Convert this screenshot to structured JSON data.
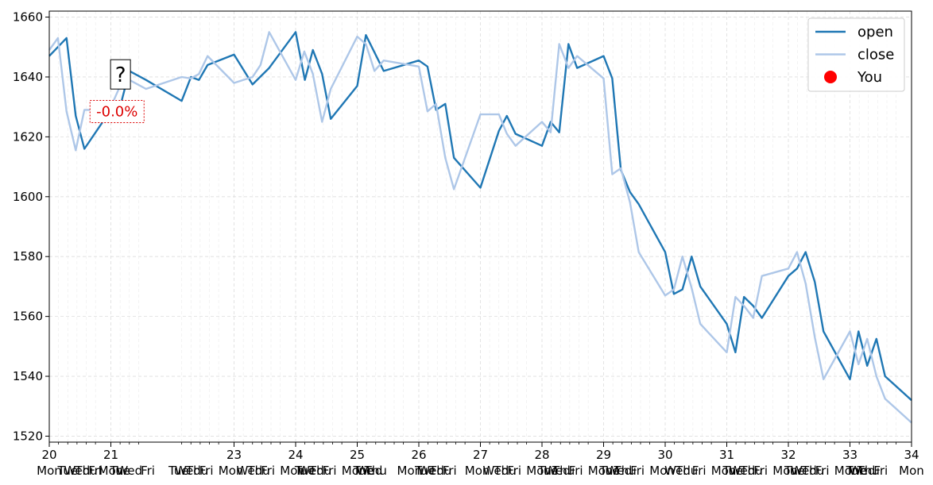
{
  "chart_data": {
    "type": "line",
    "title": "",
    "xlabel": "",
    "ylabel": "",
    "xlim": [
      20,
      34
    ],
    "ylim": [
      1518,
      1662
    ],
    "grid": true,
    "legend_position": "top-right",
    "yticks": [
      1520,
      1540,
      1560,
      1580,
      1600,
      1620,
      1640,
      1660
    ],
    "xticks_major": [
      {
        "x": 20,
        "label": "20"
      },
      {
        "x": 21,
        "label": "21"
      },
      {
        "x": 23,
        "label": "23"
      },
      {
        "x": 24,
        "label": "24"
      },
      {
        "x": 25,
        "label": "25"
      },
      {
        "x": 26,
        "label": "26"
      },
      {
        "x": 27,
        "label": "27"
      },
      {
        "x": 28,
        "label": "28"
      },
      {
        "x": 29,
        "label": "29"
      },
      {
        "x": 30,
        "label": "30"
      },
      {
        "x": 31,
        "label": "31"
      },
      {
        "x": 32,
        "label": "32"
      },
      {
        "x": 33,
        "label": "33"
      },
      {
        "x": 34,
        "label": "34"
      }
    ],
    "xticks_minor": [
      20.15,
      20.3,
      20.45,
      20.6,
      20.75,
      21.15,
      21.3,
      21.45,
      22.15,
      22.3,
      22.45,
      22.6,
      22.75,
      23.15,
      23.3,
      23.45,
      23.6,
      23.75,
      24.15,
      24.3,
      24.45,
      24.6,
      24.75,
      25.15,
      25.3,
      25.45,
      25.6,
      25.75,
      26.15,
      26.3,
      26.45,
      26.6,
      26.75,
      27.15,
      27.3,
      27.45,
      27.6,
      27.75,
      28.15,
      28.3,
      28.45,
      28.6,
      28.75,
      29.15,
      29.3,
      29.45,
      29.6,
      29.75,
      30.15,
      30.3,
      30.45,
      30.6,
      30.75,
      31.15,
      31.3,
      31.45,
      31.6,
      31.75,
      32.15,
      32.3,
      32.45,
      32.6,
      32.75,
      33.15,
      33.3,
      33.45,
      33.6,
      33.75
    ],
    "xticks_minor_labels": [
      {
        "x": 20.0,
        "label": "Mon"
      },
      {
        "x": 20.3,
        "label": "Tue"
      },
      {
        "x": 20.45,
        "label": "Wed"
      },
      {
        "x": 20.6,
        "label": "Thu"
      },
      {
        "x": 20.75,
        "label": "Fri"
      },
      {
        "x": 21.0,
        "label": "Mon"
      },
      {
        "x": 21.15,
        "label": "Tue"
      },
      {
        "x": 21.3,
        "label": "Wed"
      },
      {
        "x": 21.6,
        "label": "Fri"
      },
      {
        "x": 22.1,
        "label": "Tue"
      },
      {
        "x": 22.25,
        "label": "Wed"
      },
      {
        "x": 22.4,
        "label": "Thu"
      },
      {
        "x": 22.55,
        "label": "Fri"
      },
      {
        "x": 22.95,
        "label": "Mon"
      },
      {
        "x": 23.25,
        "label": "Wed"
      },
      {
        "x": 23.4,
        "label": "Thu"
      },
      {
        "x": 23.55,
        "label": "Fri"
      },
      {
        "x": 23.95,
        "label": "Mon"
      },
      {
        "x": 24.15,
        "label": "Tue"
      },
      {
        "x": 24.25,
        "label": "Wed"
      },
      {
        "x": 24.4,
        "label": "Thu"
      },
      {
        "x": 24.55,
        "label": "Fri"
      },
      {
        "x": 24.95,
        "label": "Mon"
      },
      {
        "x": 25.1,
        "label": "Tue"
      },
      {
        "x": 25.2,
        "label": "Wed"
      },
      {
        "x": 25.3,
        "label": "Thu"
      },
      {
        "x": 25.85,
        "label": "Mon"
      },
      {
        "x": 26.1,
        "label": "Tue"
      },
      {
        "x": 26.2,
        "label": "Wed"
      },
      {
        "x": 26.35,
        "label": "Thu"
      },
      {
        "x": 26.5,
        "label": "Fri"
      },
      {
        "x": 26.95,
        "label": "Mon"
      },
      {
        "x": 27.25,
        "label": "Wed"
      },
      {
        "x": 27.4,
        "label": "Thu"
      },
      {
        "x": 27.55,
        "label": "Fri"
      },
      {
        "x": 27.95,
        "label": "Mon"
      },
      {
        "x": 28.1,
        "label": "Tue"
      },
      {
        "x": 28.25,
        "label": "Wed"
      },
      {
        "x": 28.35,
        "label": "Thu"
      },
      {
        "x": 28.55,
        "label": "Fri"
      },
      {
        "x": 28.95,
        "label": "Mon"
      },
      {
        "x": 29.1,
        "label": "Tue"
      },
      {
        "x": 29.25,
        "label": "Wed"
      },
      {
        "x": 29.35,
        "label": "Thu"
      },
      {
        "x": 29.55,
        "label": "Fri"
      },
      {
        "x": 29.95,
        "label": "Mon"
      },
      {
        "x": 30.2,
        "label": "Wed"
      },
      {
        "x": 30.35,
        "label": "Thu"
      },
      {
        "x": 30.55,
        "label": "Fri"
      },
      {
        "x": 30.95,
        "label": "Mon"
      },
      {
        "x": 31.1,
        "label": "Tue"
      },
      {
        "x": 31.25,
        "label": "Wed"
      },
      {
        "x": 31.4,
        "label": "Thu"
      },
      {
        "x": 31.55,
        "label": "Fri"
      },
      {
        "x": 31.95,
        "label": "Mon"
      },
      {
        "x": 32.1,
        "label": "Tue"
      },
      {
        "x": 32.25,
        "label": "Wed"
      },
      {
        "x": 32.4,
        "label": "Thu"
      },
      {
        "x": 32.55,
        "label": "Fri"
      },
      {
        "x": 32.95,
        "label": "Mon"
      },
      {
        "x": 33.1,
        "label": "Tue"
      },
      {
        "x": 33.2,
        "label": "Wed"
      },
      {
        "x": 33.3,
        "label": "Thu"
      },
      {
        "x": 33.5,
        "label": "Fri"
      },
      {
        "x": 34.0,
        "label": "Mon"
      }
    ],
    "series": [
      {
        "name": "open",
        "color": "#1f77b4",
        "points": [
          [
            20.0,
            1647
          ],
          [
            20.28,
            1653
          ],
          [
            20.43,
            1627
          ],
          [
            20.57,
            1616
          ],
          [
            21.0,
            1629
          ],
          [
            21.15,
            1630
          ],
          [
            21.3,
            1642
          ],
          [
            21.57,
            1639
          ],
          [
            22.15,
            1632
          ],
          [
            22.3,
            1640
          ],
          [
            22.43,
            1639
          ],
          [
            22.57,
            1644
          ],
          [
            23.0,
            1647.5
          ],
          [
            23.3,
            1637.5
          ],
          [
            23.57,
            1643
          ],
          [
            24.0,
            1655
          ],
          [
            24.15,
            1639
          ],
          [
            24.28,
            1649
          ],
          [
            24.43,
            1641
          ],
          [
            24.57,
            1626
          ],
          [
            25.0,
            1637
          ],
          [
            25.14,
            1654
          ],
          [
            25.43,
            1642
          ],
          [
            26.0,
            1645.5
          ],
          [
            26.14,
            1643.5
          ],
          [
            26.28,
            1629
          ],
          [
            26.43,
            1631
          ],
          [
            26.57,
            1613
          ],
          [
            27.0,
            1603
          ],
          [
            27.3,
            1622
          ],
          [
            27.43,
            1627
          ],
          [
            27.57,
            1621
          ],
          [
            28.0,
            1617
          ],
          [
            28.14,
            1625
          ],
          [
            28.28,
            1621.5
          ],
          [
            28.43,
            1651
          ],
          [
            28.57,
            1643
          ],
          [
            29.0,
            1647
          ],
          [
            29.14,
            1639.5
          ],
          [
            29.28,
            1609
          ],
          [
            29.43,
            1601.5
          ],
          [
            29.57,
            1597.5
          ],
          [
            30.0,
            1581.5
          ],
          [
            30.14,
            1567.5
          ],
          [
            30.28,
            1569
          ],
          [
            30.43,
            1580
          ],
          [
            30.57,
            1570
          ],
          [
            31.0,
            1557.5
          ],
          [
            31.14,
            1548
          ],
          [
            31.28,
            1566.5
          ],
          [
            31.43,
            1563.5
          ],
          [
            31.57,
            1559.5
          ],
          [
            32.0,
            1573.5
          ],
          [
            32.14,
            1576
          ],
          [
            32.28,
            1581.5
          ],
          [
            32.43,
            1571.5
          ],
          [
            32.57,
            1555
          ],
          [
            33.0,
            1539
          ],
          [
            33.14,
            1555
          ],
          [
            33.28,
            1543.5
          ],
          [
            33.43,
            1552.5
          ],
          [
            33.57,
            1540
          ],
          [
            34.0,
            1532
          ]
        ]
      },
      {
        "name": "close",
        "color": "#aec7e8",
        "points": [
          [
            20.0,
            1649
          ],
          [
            20.14,
            1653
          ],
          [
            20.28,
            1628.5
          ],
          [
            20.43,
            1615.5
          ],
          [
            20.57,
            1629
          ],
          [
            20.72,
            1629
          ],
          [
            21.0,
            1630
          ],
          [
            21.15,
            1637
          ],
          [
            21.3,
            1639
          ],
          [
            21.57,
            1636
          ],
          [
            22.15,
            1640
          ],
          [
            22.3,
            1639.5
          ],
          [
            22.43,
            1641
          ],
          [
            22.57,
            1647
          ],
          [
            23.0,
            1638
          ],
          [
            23.3,
            1640
          ],
          [
            23.43,
            1644
          ],
          [
            23.57,
            1655
          ],
          [
            24.0,
            1639
          ],
          [
            24.14,
            1648.5
          ],
          [
            24.28,
            1641
          ],
          [
            24.43,
            1625
          ],
          [
            24.57,
            1636
          ],
          [
            25.0,
            1653.5
          ],
          [
            25.14,
            1651
          ],
          [
            25.28,
            1642
          ],
          [
            25.43,
            1645.5
          ],
          [
            26.0,
            1643.5
          ],
          [
            26.14,
            1628.5
          ],
          [
            26.28,
            1631
          ],
          [
            26.43,
            1613
          ],
          [
            26.57,
            1602.5
          ],
          [
            27.0,
            1627.5
          ],
          [
            27.3,
            1627.5
          ],
          [
            27.43,
            1621
          ],
          [
            27.57,
            1617
          ],
          [
            28.0,
            1625
          ],
          [
            28.14,
            1621.5
          ],
          [
            28.28,
            1651
          ],
          [
            28.43,
            1643
          ],
          [
            28.57,
            1647
          ],
          [
            29.0,
            1639.5
          ],
          [
            29.14,
            1607.5
          ],
          [
            29.28,
            1609.5
          ],
          [
            29.43,
            1598
          ],
          [
            29.57,
            1581.5
          ],
          [
            30.0,
            1567
          ],
          [
            30.14,
            1569
          ],
          [
            30.28,
            1580
          ],
          [
            30.43,
            1569.5
          ],
          [
            30.57,
            1557.5
          ],
          [
            31.0,
            1548
          ],
          [
            31.14,
            1566.5
          ],
          [
            31.28,
            1563.5
          ],
          [
            31.43,
            1559.5
          ],
          [
            31.57,
            1573.5
          ],
          [
            32.0,
            1576
          ],
          [
            32.14,
            1581.5
          ],
          [
            32.28,
            1571
          ],
          [
            32.43,
            1553
          ],
          [
            32.57,
            1539
          ],
          [
            33.0,
            1555
          ],
          [
            33.14,
            1544
          ],
          [
            33.28,
            1552.5
          ],
          [
            33.43,
            1540
          ],
          [
            33.57,
            1532.5
          ],
          [
            34.0,
            1524.5
          ]
        ]
      }
    ],
    "marker": {
      "name": "You",
      "color": "#ff0000",
      "x": 21.15,
      "y": 1630
    },
    "annotations": {
      "question": {
        "text": "?",
        "x": 21.15,
        "y": 1641
      },
      "change": {
        "text": "-0.0%",
        "color": "#dd0000",
        "x": 21.1,
        "y": 1629
      }
    },
    "legend": [
      {
        "label": "open",
        "kind": "line",
        "color": "#1f77b4"
      },
      {
        "label": "close",
        "kind": "line",
        "color": "#aec7e8"
      },
      {
        "label": "You",
        "kind": "dot",
        "color": "#ff0000"
      }
    ]
  }
}
